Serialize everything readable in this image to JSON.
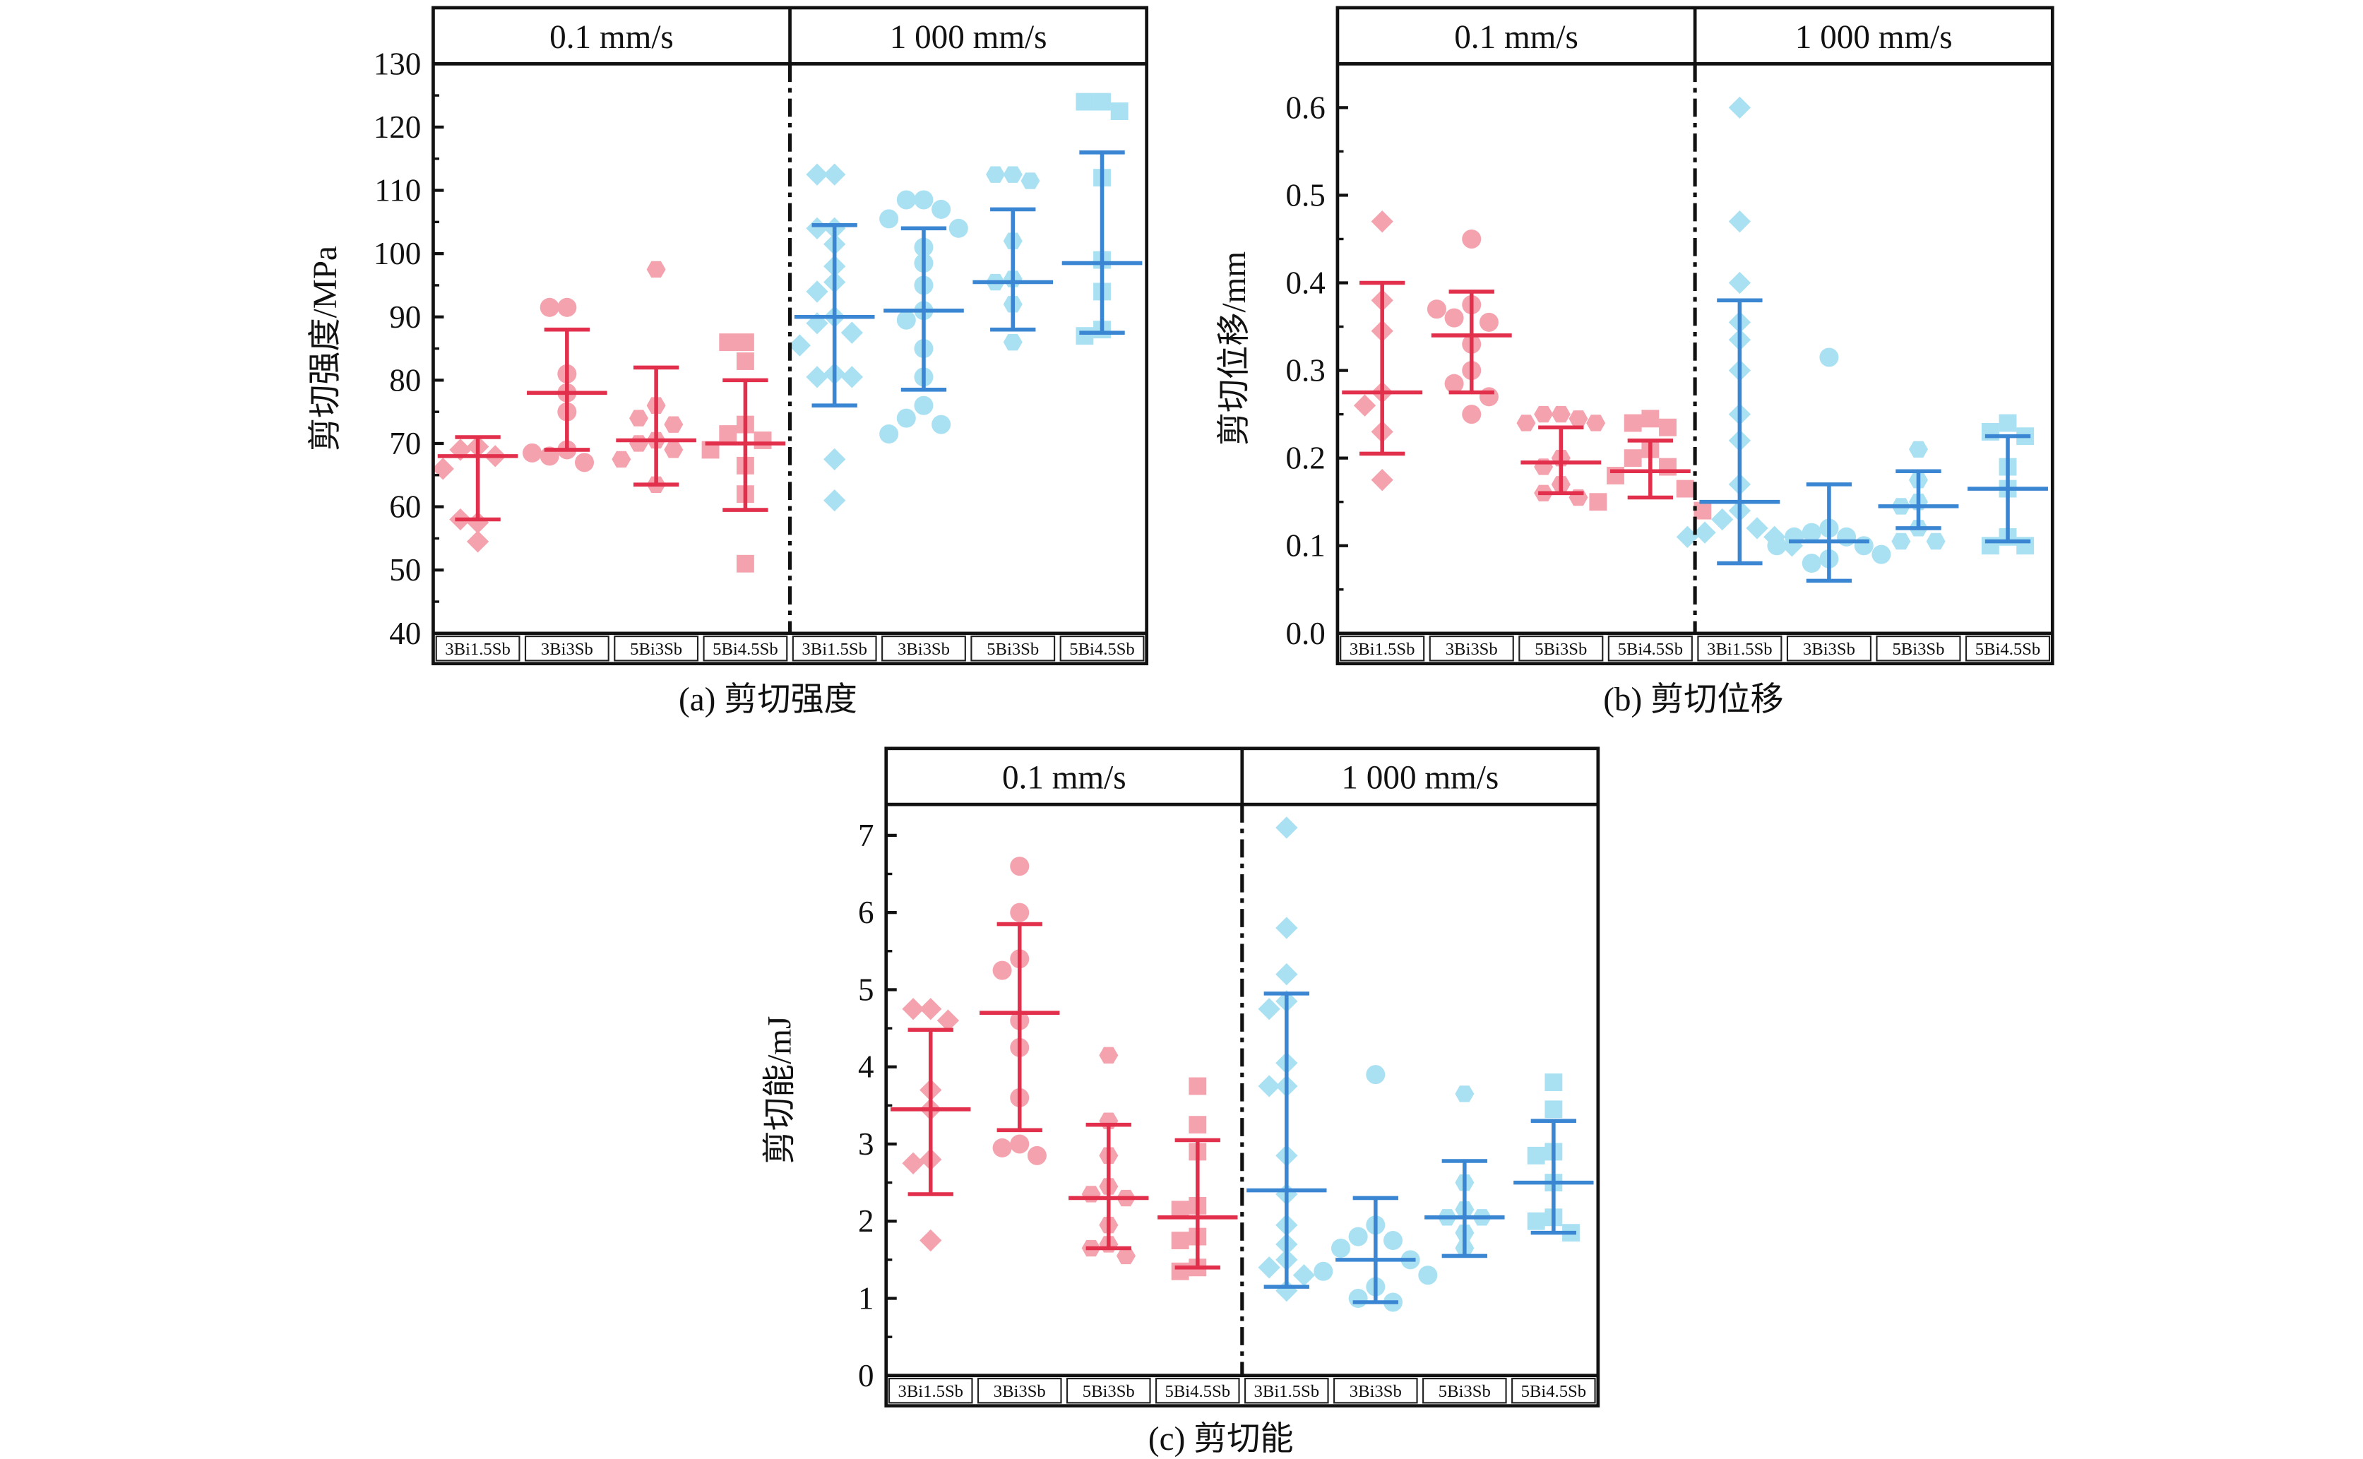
{
  "colors": {
    "low_point": "#f4a3ae",
    "low_line": "#e2304c",
    "high_point": "#a9e1f3",
    "high_line": "#3b86d2"
  },
  "chart_data": [
    {
      "type": "scatter",
      "title": "(a) 剪切强度",
      "ylabel": "剪切强度/MPa",
      "ylim": [
        40,
        130
      ],
      "yticks": [
        40,
        50,
        60,
        70,
        80,
        90,
        100,
        110,
        120,
        130
      ],
      "yminor": 5,
      "panels": [
        "0.1 mm/s",
        "1 000 mm/s"
      ],
      "categories": [
        "3Bi1.5Sb",
        "3Bi3Sb",
        "5Bi3Sb",
        "5Bi4.5Sb",
        "3Bi1.5Sb",
        "3Bi3Sb",
        "5Bi3Sb",
        "5Bi4.5Sb"
      ],
      "groups": [
        {
          "mean": 68,
          "low": 58,
          "high": 71,
          "points": [
            69.5,
            69,
            68,
            66,
            69.5,
            57.5,
            58,
            54.5
          ]
        },
        {
          "mean": 78,
          "low": 69,
          "high": 88,
          "points": [
            91.5,
            91.5,
            81,
            78,
            75,
            69,
            68,
            67,
            68.5
          ]
        },
        {
          "mean": 70.5,
          "low": 63.5,
          "high": 82,
          "points": [
            97.5,
            76,
            74,
            73,
            70.5,
            70,
            69,
            67.5,
            63.5
          ]
        },
        {
          "mean": 70,
          "low": 59.5,
          "high": 80,
          "points": [
            86,
            86,
            83,
            73,
            71.5,
            70.5,
            69,
            66.5,
            62,
            51
          ]
        },
        {
          "mean": 90,
          "low": 76,
          "high": 104.5,
          "points": [
            112.5,
            112.5,
            104,
            104,
            101.5,
            98,
            95.5,
            94,
            90,
            89,
            87.5,
            85.5,
            81,
            80.5,
            80.5,
            67.5,
            61
          ]
        },
        {
          "mean": 91,
          "low": 78.5,
          "high": 104,
          "points": [
            108.5,
            108.5,
            107,
            105.5,
            104,
            101,
            98.5,
            95,
            91,
            89.5,
            85,
            80.5,
            76,
            74,
            73,
            71.5
          ]
        },
        {
          "mean": 95.5,
          "low": 88,
          "high": 107,
          "points": [
            112.5,
            112.5,
            111.5,
            102,
            96,
            95.5,
            92,
            86
          ]
        },
        {
          "mean": 98.5,
          "low": 87.5,
          "high": 116,
          "points": [
            124,
            124,
            122.5,
            112,
            99,
            94,
            88,
            87
          ]
        }
      ]
    },
    {
      "type": "scatter",
      "title": "(b) 剪切位移",
      "ylabel": "剪切位移/mm",
      "ylim": [
        0,
        0.65
      ],
      "yticks": [
        "0.0",
        "0.1",
        "0.2",
        "0.3",
        "0.4",
        "0.5",
        "0.6"
      ],
      "yminor": 0.05,
      "panels": [
        "0.1 mm/s",
        "1 000 mm/s"
      ],
      "categories": [
        "3Bi1.5Sb",
        "3Bi3Sb",
        "5Bi3Sb",
        "5Bi4.5Sb",
        "3Bi1.5Sb",
        "3Bi3Sb",
        "5Bi3Sb",
        "5Bi4.5Sb"
      ],
      "groups": [
        {
          "mean": 0.275,
          "low": 0.205,
          "high": 0.4,
          "points": [
            0.47,
            0.38,
            0.345,
            0.275,
            0.26,
            0.23,
            0.175
          ]
        },
        {
          "mean": 0.34,
          "low": 0.275,
          "high": 0.39,
          "points": [
            0.45,
            0.375,
            0.36,
            0.355,
            0.37,
            0.33,
            0.3,
            0.285,
            0.27,
            0.25
          ]
        },
        {
          "mean": 0.195,
          "low": 0.16,
          "high": 0.235,
          "points": [
            0.25,
            0.25,
            0.245,
            0.24,
            0.24,
            0.2,
            0.19,
            0.17,
            0.16,
            0.155
          ]
        },
        {
          "mean": 0.185,
          "low": 0.155,
          "high": 0.22,
          "points": [
            0.245,
            0.24,
            0.235,
            0.21,
            0.2,
            0.19,
            0.18,
            0.165,
            0.15,
            0.14
          ]
        },
        {
          "mean": 0.15,
          "low": 0.08,
          "high": 0.38,
          "points": [
            0.6,
            0.47,
            0.4,
            0.355,
            0.335,
            0.3,
            0.25,
            0.22,
            0.17,
            0.14,
            0.13,
            0.12,
            0.115,
            0.11,
            0.11,
            0.1
          ]
        },
        {
          "mean": 0.105,
          "low": 0.06,
          "high": 0.17,
          "points": [
            0.315,
            0.12,
            0.115,
            0.11,
            0.11,
            0.1,
            0.1,
            0.09,
            0.085,
            0.08
          ]
        },
        {
          "mean": 0.145,
          "low": 0.12,
          "high": 0.185,
          "points": [
            0.21,
            0.175,
            0.15,
            0.145,
            0.12,
            0.105,
            0.105
          ]
        },
        {
          "mean": 0.165,
          "low": 0.105,
          "high": 0.225,
          "points": [
            0.24,
            0.23,
            0.225,
            0.19,
            0.165,
            0.11,
            0.1,
            0.1
          ]
        }
      ]
    },
    {
      "type": "scatter",
      "title": "(c) 剪切能",
      "ylabel": "剪切能/mJ",
      "ylim": [
        0,
        7.4
      ],
      "yticks": [
        0,
        1,
        2,
        3,
        4,
        5,
        6,
        7
      ],
      "yminor": 0.5,
      "panels": [
        "0.1 mm/s",
        "1 000 mm/s"
      ],
      "categories": [
        "3Bi1.5Sb",
        "3Bi3Sb",
        "5Bi3Sb",
        "5Bi4.5Sb",
        "3Bi1.5Sb",
        "3Bi3Sb",
        "5Bi3Sb",
        "5Bi4.5Sb"
      ],
      "groups": [
        {
          "mean": 3.45,
          "low": 2.35,
          "high": 4.48,
          "points": [
            4.75,
            4.75,
            4.6,
            3.7,
            3.45,
            2.8,
            2.75,
            1.75
          ]
        },
        {
          "mean": 4.7,
          "low": 3.18,
          "high": 5.85,
          "points": [
            6.6,
            6.0,
            5.4,
            5.25,
            4.6,
            4.25,
            3.6,
            3.0,
            2.95,
            2.85
          ]
        },
        {
          "mean": 2.3,
          "low": 1.65,
          "high": 3.25,
          "points": [
            4.15,
            3.3,
            2.85,
            2.45,
            2.35,
            2.3,
            1.95,
            1.7,
            1.65,
            1.55
          ]
        },
        {
          "mean": 2.05,
          "low": 1.4,
          "high": 3.05,
          "points": [
            3.75,
            3.25,
            2.9,
            2.2,
            2.15,
            1.8,
            1.75,
            1.4,
            1.35
          ]
        },
        {
          "mean": 2.4,
          "low": 1.15,
          "high": 4.95,
          "points": [
            7.1,
            5.8,
            5.2,
            4.85,
            4.75,
            4.05,
            3.75,
            3.75,
            2.85,
            2.35,
            1.95,
            1.7,
            1.5,
            1.4,
            1.3,
            1.1
          ]
        },
        {
          "mean": 1.5,
          "low": 0.95,
          "high": 2.3,
          "points": [
            3.9,
            1.95,
            1.8,
            1.75,
            1.65,
            1.5,
            1.35,
            1.3,
            1.15,
            1.0,
            0.95
          ]
        },
        {
          "mean": 2.05,
          "low": 1.55,
          "high": 2.78,
          "points": [
            3.65,
            2.5,
            2.15,
            2.05,
            2.05,
            1.85,
            1.65
          ]
        },
        {
          "mean": 2.5,
          "low": 1.85,
          "high": 3.3,
          "points": [
            3.8,
            3.45,
            2.9,
            2.85,
            2.5,
            2.05,
            2.0,
            1.85
          ]
        }
      ]
    }
  ]
}
